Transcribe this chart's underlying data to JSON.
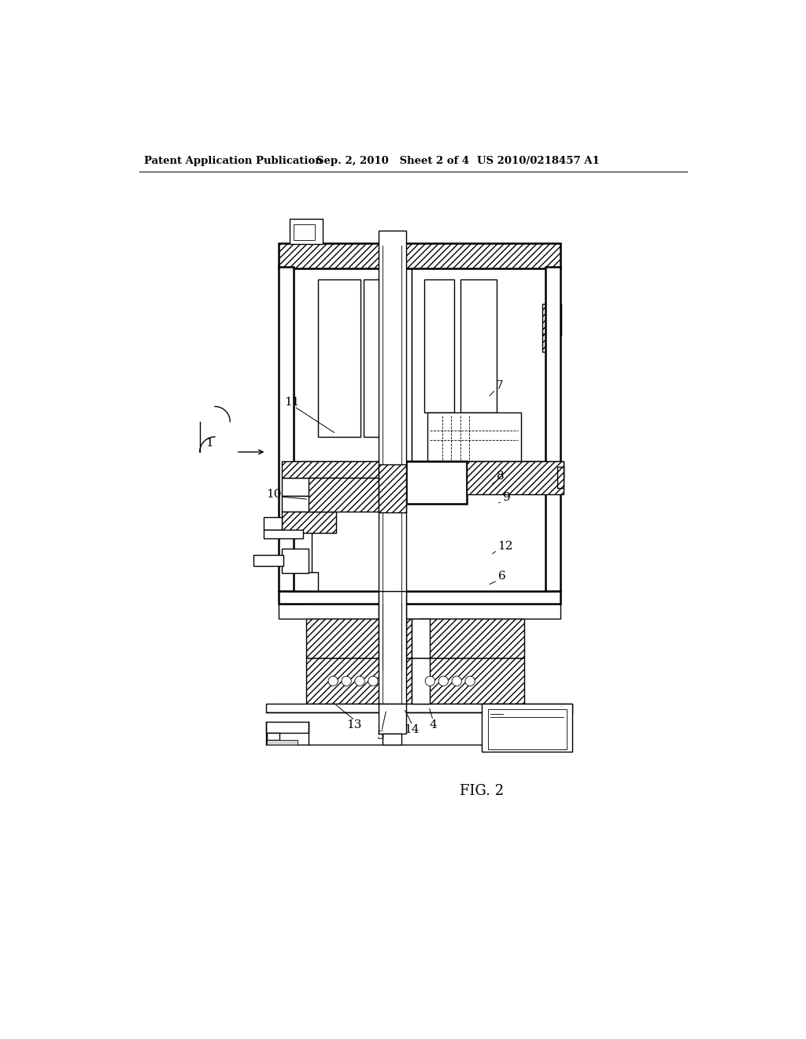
{
  "title_left": "Patent Application Publication",
  "title_center": "Sep. 2, 2010   Sheet 2 of 4",
  "title_right": "US 2010/0218457 A1",
  "fig_label": "FIG. 2",
  "bg_color": "#ffffff",
  "line_color": "#000000",
  "lw_thin": 0.6,
  "lw_med": 1.0,
  "lw_thick": 1.8,
  "lw_xthick": 2.5
}
